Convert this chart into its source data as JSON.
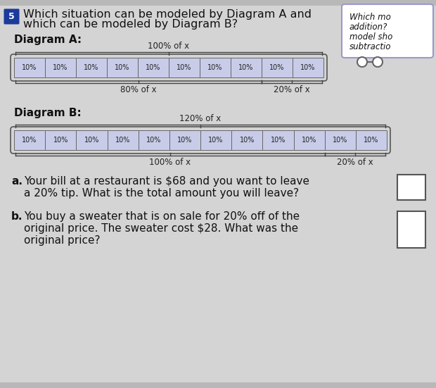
{
  "bg_color": "#d4d4d4",
  "title_number": "5",
  "title_line1": "Which situation can be modeled by Diagram A and",
  "title_line2": "which can be modeled by Diagram B?",
  "diagram_a_label": "Diagram A:",
  "diagram_b_label": "Diagram B:",
  "diagram_a_top_label": "100% of x",
  "diagram_a_bottom_left_label": "80% of x",
  "diagram_a_bottom_right_label": "20% of x",
  "diagram_b_top_label": "120% of x",
  "diagram_b_bottom_left_label": "100% of x",
  "diagram_b_bottom_right_label": "20% of x",
  "cell_label": "10%",
  "diagram_a_cells": 10,
  "diagram_b_cells": 12,
  "diagram_a_split": 8,
  "diagram_b_split": 10,
  "cell_fill_color": "#c8cce8",
  "cell_border_color": "#666666",
  "outer_border_color": "#555555",
  "side_box_lines": [
    "Which mo",
    "addition?",
    "model sho",
    "subtractio"
  ],
  "question_a_line1": "Your bill at a restaurant is $68 and you want to leave",
  "question_a_line2": "a 20% tip. What is the total amount you will leave?",
  "question_b_line1": "You buy a sweater that is on sale for 20% off of the",
  "question_b_line2": "original price. The sweater cost $28. What was the",
  "question_b_line3": "original price?",
  "font_size_title": 11.5,
  "font_size_diagram_label": 11,
  "font_size_cell": 7,
  "font_size_brace_label": 8.5,
  "font_size_question": 11,
  "top_stripe_color": "#b8b8b8",
  "badge_color": "#1a3a9c"
}
